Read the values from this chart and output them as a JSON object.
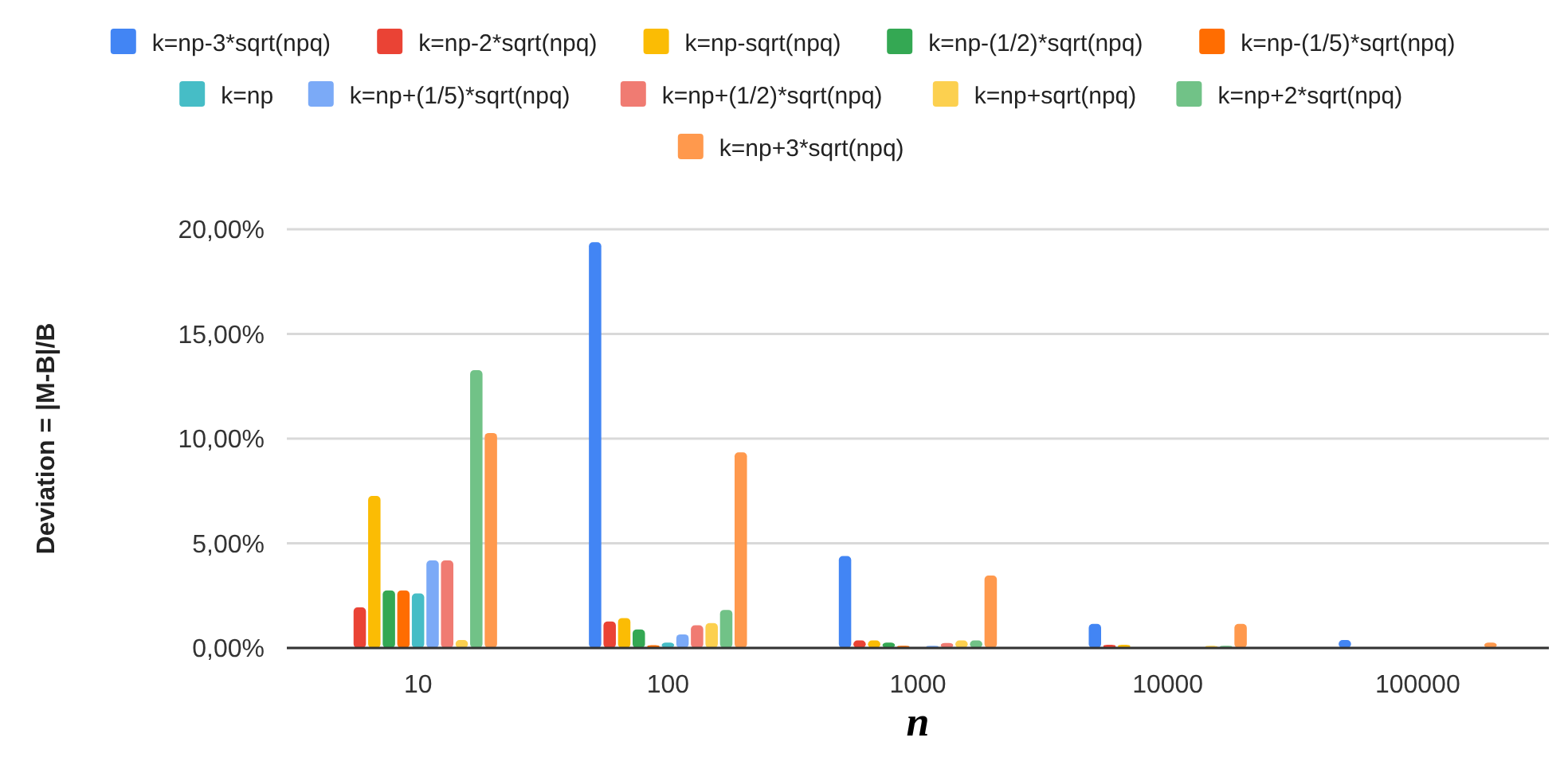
{
  "chart_data": {
    "type": "bar",
    "xlabel": "n",
    "ylabel": "Deviation = |M-B|/B",
    "categories": [
      "10",
      "100",
      "1000",
      "10000",
      "100000"
    ],
    "series": [
      {
        "name": "k=np-3*sqrt(npq)",
        "color": "#4285f4",
        "values": [
          0,
          19.38,
          4.39,
          1.15,
          0.38
        ]
      },
      {
        "name": "k=np-2*sqrt(npq)",
        "color": "#ea4335",
        "values": [
          1.94,
          1.26,
          0.36,
          0.15,
          0
        ]
      },
      {
        "name": "k=np-sqrt(npq)",
        "color": "#fbbc04",
        "values": [
          7.26,
          1.43,
          0.36,
          0.15,
          0
        ]
      },
      {
        "name": "k=np-(1/2)*sqrt(npq)",
        "color": "#34a853",
        "values": [
          2.75,
          0.88,
          0.26,
          0,
          0
        ]
      },
      {
        "name": "k=np-(1/5)*sqrt(npq)",
        "color": "#ff6d01",
        "values": [
          2.75,
          0.13,
          0.1,
          0,
          0
        ]
      },
      {
        "name": "k=np",
        "color": "#46bdc6",
        "values": [
          2.6,
          0.26,
          0,
          0,
          0
        ]
      },
      {
        "name": "k=np+(1/5)*sqrt(npq)",
        "color": "#7baaf7",
        "values": [
          4.18,
          0.65,
          0.1,
          0,
          0
        ]
      },
      {
        "name": "k=np+(1/2)*sqrt(npq)",
        "color": "#f07b72",
        "values": [
          4.18,
          1.08,
          0.24,
          0,
          0
        ]
      },
      {
        "name": "k=np+sqrt(npq)",
        "color": "#fcd04f",
        "values": [
          0.38,
          1.19,
          0.36,
          0.1,
          0
        ]
      },
      {
        "name": "k=np+2*sqrt(npq)",
        "color": "#71c287",
        "values": [
          13.27,
          1.82,
          0.36,
          0.1,
          0
        ]
      },
      {
        "name": "k=np+3*sqrt(npq)",
        "color": "#ff994d",
        "values": [
          10.27,
          9.34,
          3.46,
          1.15,
          0.26
        ]
      }
    ],
    "ylim": [
      0,
      20
    ],
    "yticks": [
      {
        "value": 0,
        "label": "0,00%"
      },
      {
        "value": 5,
        "label": "5,00%"
      },
      {
        "value": 10,
        "label": "10,00%"
      },
      {
        "value": 15,
        "label": "15,00%"
      },
      {
        "value": 20,
        "label": "20,00%"
      }
    ],
    "grid": "y",
    "legend": "top"
  }
}
